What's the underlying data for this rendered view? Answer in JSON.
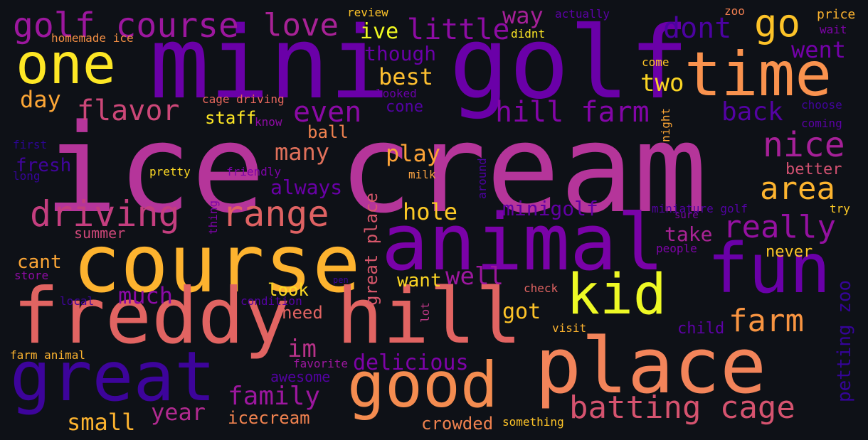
{
  "background": "#0e1117",
  "words": [
    {
      "id": "ice-cream",
      "text": "ice cream",
      "color": "#b5359a"
    },
    {
      "id": "mini-golf",
      "text": "mini golf",
      "color": "#6a00a8"
    },
    {
      "id": "course",
      "text": "course",
      "color": "#fdb32f"
    },
    {
      "id": "animal",
      "text": "animal",
      "color": "#7a02a8"
    },
    {
      "id": "freddy-hill",
      "text": "freddy hill",
      "color": "#e16462"
    },
    {
      "id": "place",
      "text": "place",
      "color": "#f2845a"
    },
    {
      "id": "good",
      "text": "good",
      "color": "#f48c50"
    },
    {
      "id": "fun",
      "text": "fun",
      "color": "#6a00a8"
    },
    {
      "id": "great",
      "text": "great",
      "color": "#3d049b"
    },
    {
      "id": "time",
      "text": "time",
      "color": "#f9924e"
    },
    {
      "id": "kid",
      "text": "kid",
      "color": "#eef925"
    },
    {
      "id": "one",
      "text": "one",
      "color": "#fde725"
    },
    {
      "id": "batting-cage",
      "text": "batting cage",
      "color": "#d5536f"
    },
    {
      "id": "driving",
      "text": "driving",
      "color": "#c43e7f"
    },
    {
      "id": "range",
      "text": "range",
      "color": "#df6263"
    },
    {
      "id": "golf-course",
      "text": "golf course",
      "color": "#9c179e"
    },
    {
      "id": "love",
      "text": "love",
      "color": "#a82296"
    },
    {
      "id": "go",
      "text": "go",
      "color": "#fdc328"
    },
    {
      "id": "dont",
      "text": "dont",
      "color": "#4c02a1"
    },
    {
      "id": "little",
      "text": "little",
      "color": "#8e0ca4"
    },
    {
      "id": "way",
      "text": "way",
      "color": "#a62098"
    },
    {
      "id": "went",
      "text": "went",
      "color": "#7301a8"
    },
    {
      "id": "nice",
      "text": "nice",
      "color": "#a62098"
    },
    {
      "id": "area",
      "text": "area",
      "color": "#fdb42f"
    },
    {
      "id": "really",
      "text": "really",
      "color": "#9511a1"
    },
    {
      "id": "farm",
      "text": "farm",
      "color": "#f89441"
    },
    {
      "id": "hill-farm",
      "text": "hill farm",
      "color": "#8305a7"
    },
    {
      "id": "back",
      "text": "back",
      "color": "#5402a3"
    },
    {
      "id": "even",
      "text": "even",
      "color": "#8b0aa5"
    },
    {
      "id": "flavor",
      "text": "flavor",
      "color": "#cc4778"
    },
    {
      "id": "day",
      "text": "day",
      "color": "#fca636"
    },
    {
      "id": "two",
      "text": "two",
      "color": "#fbd524"
    },
    {
      "id": "best",
      "text": "best",
      "color": "#fdbf30"
    },
    {
      "id": "ive",
      "text": "ive",
      "color": "#f0f921"
    },
    {
      "id": "though",
      "text": "though",
      "color": "#6a00a8"
    },
    {
      "id": "play",
      "text": "play",
      "color": "#fca338"
    },
    {
      "id": "many",
      "text": "many",
      "color": "#e0705a"
    },
    {
      "id": "always",
      "text": "always",
      "color": "#6a00a8"
    },
    {
      "id": "hole",
      "text": "hole",
      "color": "#fdca26"
    },
    {
      "id": "minigolf",
      "text": "minigolf",
      "color": "#6200a4"
    },
    {
      "id": "take",
      "text": "take",
      "color": "#a92395"
    },
    {
      "id": "never",
      "text": "never",
      "color": "#fdc527"
    },
    {
      "id": "family",
      "text": "family",
      "color": "#9c179e"
    },
    {
      "id": "year",
      "text": "year",
      "color": "#b12a90"
    },
    {
      "id": "small",
      "text": "small",
      "color": "#fdb32f"
    },
    {
      "id": "icecream",
      "text": "icecream",
      "color": "#f0824f"
    },
    {
      "id": "much",
      "text": "much",
      "color": "#8b0aa5"
    },
    {
      "id": "im",
      "text": "im",
      "color": "#b83289"
    },
    {
      "id": "got",
      "text": "got",
      "color": "#fdc328"
    },
    {
      "id": "well",
      "text": "well",
      "color": "#9c179e"
    },
    {
      "id": "want",
      "text": "want",
      "color": "#fbd524"
    },
    {
      "id": "delicious",
      "text": "delicious",
      "color": "#7e03a8"
    },
    {
      "id": "awesome",
      "text": "awesome",
      "color": "#5302a3"
    },
    {
      "id": "crowded",
      "text": "crowded",
      "color": "#f0824f"
    },
    {
      "id": "look",
      "text": "look",
      "color": "#fdd924"
    },
    {
      "id": "need",
      "text": "need",
      "color": "#e16462"
    },
    {
      "id": "cant",
      "text": "cant",
      "color": "#fca636"
    },
    {
      "id": "staff",
      "text": "staff",
      "color": "#fde725"
    },
    {
      "id": "ball",
      "text": "ball",
      "color": "#f0824f"
    },
    {
      "id": "fresh",
      "text": "fresh",
      "color": "#41049d"
    },
    {
      "id": "summer",
      "text": "summer",
      "color": "#cc4778"
    },
    {
      "id": "child",
      "text": "child",
      "color": "#5d01a6"
    },
    {
      "id": "petting-zoo",
      "text": "petting zoo",
      "color": "#350498"
    },
    {
      "id": "great-place",
      "text": "great place",
      "color": "#d8576b"
    },
    {
      "id": "better",
      "text": "better",
      "color": "#d35171"
    },
    {
      "id": "cone",
      "text": "cone",
      "color": "#5302a3"
    },
    {
      "id": "review",
      "text": "review",
      "color": "#fdc328"
    },
    {
      "id": "actually",
      "text": "actually",
      "color": "#5c01a6"
    },
    {
      "id": "zoo",
      "text": "zoo",
      "color": "#ef7e50"
    },
    {
      "id": "price",
      "text": "price",
      "color": "#fdb42f"
    },
    {
      "id": "wait",
      "text": "wait",
      "color": "#7e03a8"
    },
    {
      "id": "homemade-ice",
      "text": "homemade ice",
      "color": "#f48f44"
    },
    {
      "id": "didnt",
      "text": "didnt",
      "color": "#fde725"
    },
    {
      "id": "come",
      "text": "come",
      "color": "#fdc328"
    },
    {
      "id": "looked",
      "text": "looked",
      "color": "#6a00a8"
    },
    {
      "id": "cage-driving",
      "text": "cage driving",
      "color": "#e9695d"
    },
    {
      "id": "know",
      "text": "know",
      "color": "#8e0ca4"
    },
    {
      "id": "choose",
      "text": "choose",
      "color": "#41049d"
    },
    {
      "id": "coming",
      "text": "coming",
      "color": "#5c01a6"
    },
    {
      "id": "first",
      "text": "first",
      "color": "#2c0594"
    },
    {
      "id": "long",
      "text": "long",
      "color": "#350498"
    },
    {
      "id": "pretty",
      "text": "pretty",
      "color": "#fdd924"
    },
    {
      "id": "friendly",
      "text": "friendly",
      "color": "#7e03a8"
    },
    {
      "id": "milk",
      "text": "milk",
      "color": "#f9a242"
    },
    {
      "id": "around",
      "text": "around",
      "color": "#4c02a1"
    },
    {
      "id": "night",
      "text": "night",
      "color": "#fca636"
    },
    {
      "id": "miniature-golf",
      "text": "miniature golf",
      "color": "#5302a3"
    },
    {
      "id": "sure",
      "text": "sure",
      "color": "#7e03a8"
    },
    {
      "id": "try",
      "text": "try",
      "color": "#fdca26"
    },
    {
      "id": "people",
      "text": "people",
      "color": "#7e03a8"
    },
    {
      "id": "thing",
      "text": "thing",
      "color": "#7e03a8"
    },
    {
      "id": "store",
      "text": "store",
      "color": "#8e0ca4"
    },
    {
      "id": "local",
      "text": "local",
      "color": "#41049d"
    },
    {
      "id": "condition",
      "text": "condition",
      "color": "#5402a3"
    },
    {
      "id": "lot",
      "text": "lot",
      "color": "#bd3786"
    },
    {
      "id": "pen",
      "text": "pen",
      "color": "#3d049b"
    },
    {
      "id": "check",
      "text": "check",
      "color": "#e16462"
    },
    {
      "id": "visit",
      "text": "visit",
      "color": "#fdb42f"
    },
    {
      "id": "farm-animal",
      "text": "farm animal",
      "color": "#fdb42f"
    },
    {
      "id": "favorite",
      "text": "favorite",
      "color": "#9c179e"
    },
    {
      "id": "something",
      "text": "something",
      "color": "#fdc328"
    }
  ]
}
